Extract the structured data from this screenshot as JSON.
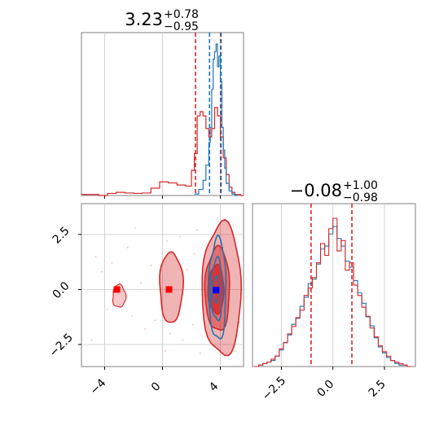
{
  "colors": {
    "red": "#d62728",
    "blue": "#1f77b4",
    "red_fill": "#e9a3a3",
    "grid": "#c8c8c8"
  },
  "chart_data": [
    {
      "type": "histogram",
      "panel": "top-left",
      "title": "3.23",
      "title_sup": "+0.78",
      "title_sub": "−0.95",
      "xlim": [
        -5.6,
        5.6
      ],
      "quantile_lines": {
        "red": [
          2.28,
          4.01
        ],
        "blue": [
          3.25,
          4.05
        ]
      },
      "red_series": {
        "color": "#d62728",
        "x": [
          -5.6,
          -5.0,
          -4.4,
          -3.8,
          -3.2,
          -2.6,
          -2.0,
          -1.4,
          -0.8,
          -0.2,
          0.4,
          1.0,
          1.6,
          2.0,
          2.2,
          2.4,
          2.6,
          2.8,
          3.0,
          3.2,
          3.4,
          3.6,
          3.8,
          4.0,
          4.2,
          4.4,
          4.6,
          4.8,
          5.0,
          5.4
        ],
        "y": [
          0.5,
          0.5,
          0,
          1.0,
          1.5,
          1.2,
          1.0,
          1.2,
          3.5,
          6.5,
          6.0,
          5.0,
          4.5,
          12,
          20,
          38,
          40,
          38,
          32,
          28,
          32,
          42,
          38,
          28,
          18,
          10,
          4,
          1.5,
          0.5,
          0
        ]
      },
      "blue_series": {
        "color": "#1f77b4",
        "x": [
          2.2,
          2.5,
          2.8,
          3.0,
          3.2,
          3.3,
          3.4,
          3.5,
          3.6,
          3.7,
          3.8,
          3.9,
          4.0,
          4.1,
          4.2,
          4.3,
          4.4,
          4.6,
          4.8,
          5.0
        ],
        "y": [
          1.0,
          4.0,
          10,
          20,
          35,
          45,
          70,
          90,
          95,
          100,
          85,
          92,
          75,
          45,
          30,
          18,
          8,
          3,
          1,
          0
        ]
      }
    },
    {
      "type": "histogram",
      "panel": "bottom-right",
      "title": "−0.08",
      "title_sup": "+1.00",
      "title_sub": "−0.98",
      "xlim": [
        -3.9,
        4.0
      ],
      "xticks": [
        "−2.5",
        "0.0",
        "2.5"
      ],
      "quantile_lines": {
        "red": [
          -1.06,
          0.92
        ]
      },
      "red_series": {
        "color": "#d62728",
        "x": [
          -3.8,
          -3.6,
          -3.4,
          -3.2,
          -3.0,
          -2.8,
          -2.6,
          -2.4,
          -2.2,
          -2.0,
          -1.8,
          -1.6,
          -1.4,
          -1.2,
          -1.0,
          -0.8,
          -0.6,
          -0.4,
          -0.2,
          0.0,
          0.2,
          0.4,
          0.6,
          0.8,
          1.0,
          1.2,
          1.4,
          1.6,
          1.8,
          2.0,
          2.2,
          2.4,
          2.6,
          2.8,
          3.0,
          3.2,
          3.4,
          3.6
        ],
        "y": [
          0,
          1,
          2,
          3,
          5,
          7,
          12,
          16,
          22,
          27,
          33,
          38,
          48,
          53,
          60,
          70,
          83,
          75,
          93,
          100,
          78,
          85,
          65,
          70,
          55,
          48,
          40,
          34,
          26,
          20,
          14,
          10,
          7,
          4,
          3,
          2,
          1,
          0
        ]
      },
      "blue_series": {
        "color": "#1f77b4",
        "x": [
          -3.8,
          -3.6,
          -3.4,
          -3.2,
          -3.0,
          -2.8,
          -2.6,
          -2.4,
          -2.2,
          -2.0,
          -1.8,
          -1.6,
          -1.4,
          -1.2,
          -1.0,
          -0.8,
          -0.6,
          -0.4,
          -0.2,
          0.0,
          0.2,
          0.4,
          0.6,
          0.8,
          1.0,
          1.2,
          1.4,
          1.6,
          1.8,
          2.0,
          2.2,
          2.4,
          2.6,
          2.8,
          3.0,
          3.2,
          3.4,
          3.6
        ],
        "y": [
          0,
          1,
          2,
          3,
          4,
          7,
          11,
          16,
          21,
          28,
          32,
          40,
          46,
          55,
          58,
          68,
          78,
          80,
          88,
          93,
          85,
          80,
          70,
          66,
          57,
          49,
          42,
          33,
          27,
          19,
          13,
          9,
          6,
          4,
          2,
          1,
          1,
          0
        ]
      }
    },
    {
      "type": "contour",
      "panel": "bottom-left",
      "xlim": [
        -5.6,
        5.6
      ],
      "ylim": [
        -3.5,
        3.9
      ],
      "xticks": [
        "−4",
        "0",
        "4"
      ],
      "yticks": [
        "2.5",
        "0.0",
        "−2.5"
      ],
      "markers": [
        {
          "x": -3.15,
          "y": 0.0,
          "color": "#ff0000"
        },
        {
          "x": 0.45,
          "y": 0.0,
          "color": "#ff0000"
        },
        {
          "x": 3.7,
          "y": -0.03,
          "color": "#0000ff"
        }
      ],
      "red_contours": [
        {
          "cx": 4.1,
          "cy": 0.0,
          "rx": 1.35,
          "ry": 3.0,
          "fill_opacity": 0.35
        },
        {
          "cx": 0.6,
          "cy": 0.1,
          "rx": 0.8,
          "ry": 1.6,
          "fill_opacity": 0.35
        },
        {
          "cx": 3.8,
          "cy": 0.0,
          "rx": 0.85,
          "ry": 1.9,
          "fill_opacity": 0.5
        },
        {
          "cx": 3.7,
          "cy": 0.0,
          "rx": 0.55,
          "ry": 1.1,
          "fill_opacity": 0.8
        }
      ],
      "blue_contours": [
        {
          "cx": 3.8,
          "cy": 0.0,
          "rx": 0.6,
          "ry": 2.3
        },
        {
          "cx": 3.75,
          "cy": 0.0,
          "rx": 0.4,
          "ry": 1.4
        },
        {
          "cx": 3.7,
          "cy": 0.0,
          "rx": 0.2,
          "ry": 0.6
        }
      ],
      "scatter_points": [
        [
          -4.6,
          1.5
        ],
        [
          -4.2,
          0.8
        ],
        [
          -3.8,
          -0.9
        ],
        [
          -3.5,
          1.2
        ],
        [
          -2.9,
          -0.8
        ],
        [
          -2.4,
          1.9
        ],
        [
          -2.1,
          -1.2
        ],
        [
          -1.5,
          0.3
        ],
        [
          -1.2,
          -1.8
        ],
        [
          -0.8,
          1.1
        ],
        [
          -0.5,
          -1.4
        ],
        [
          0.3,
          2.2
        ],
        [
          0.5,
          -2.0
        ],
        [
          1.2,
          2.4
        ],
        [
          1.4,
          -2.3
        ],
        [
          1.7,
          0.9
        ],
        [
          2.1,
          -1.6
        ],
        [
          2.4,
          2.7
        ],
        [
          2.6,
          -2.9
        ],
        [
          5.1,
          1.8
        ],
        [
          5.3,
          -1.5
        ],
        [
          4.9,
          2.9
        ],
        [
          5.0,
          -2.8
        ],
        [
          2.2,
          1.6
        ],
        [
          1.1,
          -1.1
        ],
        [
          -4.9,
          -2.3
        ],
        [
          -1.9,
          2.8
        ],
        [
          0.2,
          -2.8
        ]
      ]
    }
  ]
}
